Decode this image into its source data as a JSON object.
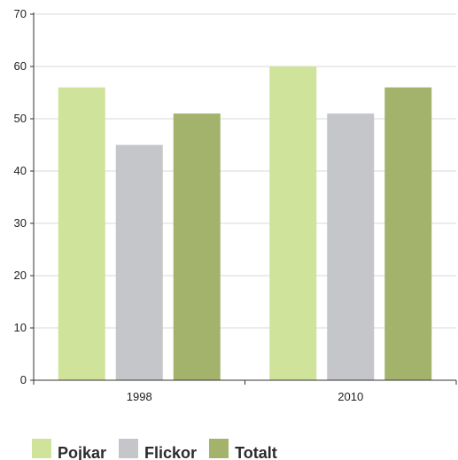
{
  "chart_data": {
    "type": "bar",
    "categories": [
      "1998",
      "2010"
    ],
    "series": [
      {
        "name": "Pojkar",
        "values": [
          56,
          60
        ],
        "color": "#cfe39a"
      },
      {
        "name": "Flickor",
        "values": [
          45,
          51
        ],
        "color": "#c5c6c9"
      },
      {
        "name": "Totalt",
        "values": [
          51,
          56
        ],
        "color": "#a4b36c"
      }
    ],
    "yticks": [
      0,
      10,
      20,
      30,
      40,
      50,
      60,
      70
    ],
    "ylim": [
      0,
      70
    ],
    "grid": true,
    "legend_position": "bottom-left",
    "title": "",
    "xlabel": "",
    "ylabel": ""
  }
}
